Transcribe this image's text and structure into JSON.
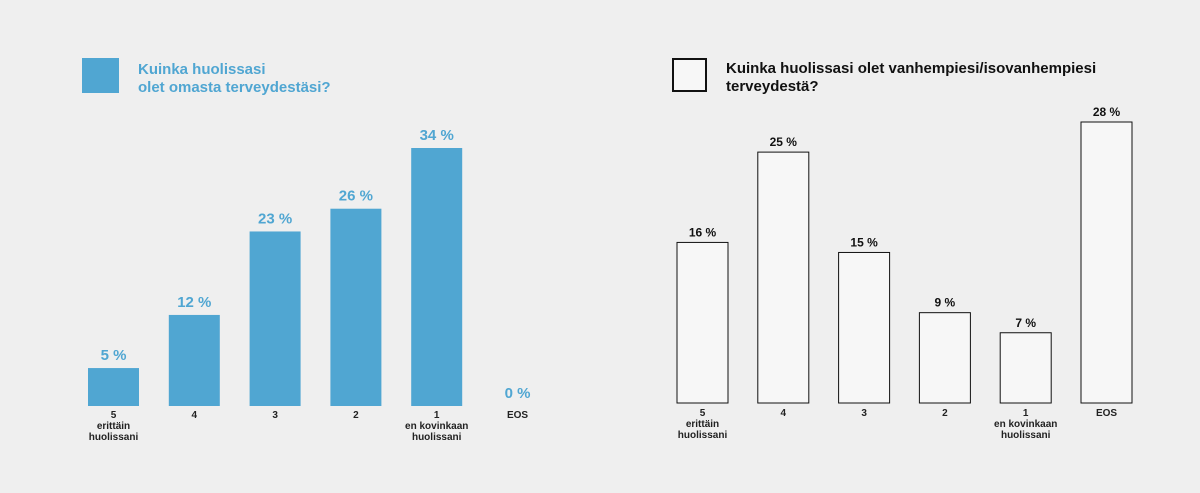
{
  "chart_data": [
    {
      "type": "bar",
      "title_lines": [
        "Kuinka huolissasi",
        "olet omasta terveydestäsi?"
      ],
      "categories": [
        [
          "5",
          "erittäin",
          "huolissani"
        ],
        [
          "4"
        ],
        [
          "3"
        ],
        [
          "2"
        ],
        [
          "1",
          "en kovinkaan",
          "huolissani"
        ],
        [
          "EOS"
        ]
      ],
      "values": [
        5,
        12,
        23,
        26,
        34,
        0
      ],
      "value_labels": [
        "5 %",
        "12 %",
        "23 %",
        "26 %",
        "34 %",
        "0 %"
      ],
      "ylim": [
        0,
        34
      ],
      "grid": false,
      "colors": {
        "bar": "#50a6d2",
        "bar_stroke": "none",
        "label": "#50a6d2",
        "title": "#50a6d2"
      }
    },
    {
      "type": "bar",
      "title_lines": [
        "Kuinka huolissasi olet vanhempiesi/isovanhempiesi",
        "terveydestä?"
      ],
      "categories": [
        [
          "5",
          "erittäin",
          "huolissani"
        ],
        [
          "4"
        ],
        [
          "3"
        ],
        [
          "2"
        ],
        [
          "1",
          "en kovinkaan",
          "huolissani"
        ],
        [
          "EOS"
        ]
      ],
      "values": [
        16,
        25,
        15,
        9,
        7,
        28
      ],
      "value_labels": [
        "16 %",
        "25 %",
        "15 %",
        "9 %",
        "7 %",
        "28 %"
      ],
      "ylim": [
        0,
        28
      ],
      "grid": false,
      "colors": {
        "bar": "#f7f7f7",
        "bar_stroke": "#111111",
        "label": "#111111",
        "title": "#111111"
      }
    }
  ]
}
